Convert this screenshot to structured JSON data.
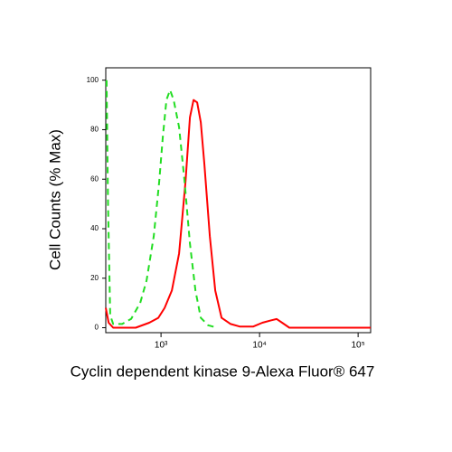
{
  "chart_data": {
    "type": "line",
    "ylabel": "Cell Counts (% Max)",
    "xlabel": "Cyclin dependent kinase 9-Alexa Fluor® 647",
    "xscale": "log",
    "xlim": [
      275,
      134000
    ],
    "ylim": [
      -2,
      105
    ],
    "xticks": [
      {
        "value": 1000,
        "label": "10³"
      },
      {
        "value": 10000,
        "label": "10⁴"
      },
      {
        "value": 100000,
        "label": "10⁵"
      }
    ],
    "yticks": [
      0,
      20,
      40,
      60,
      80,
      100
    ],
    "series": [
      {
        "color": "#ff0000",
        "dash": false,
        "x": [
          275,
          294,
          327,
          553,
          760,
          938,
          1088,
          1289,
          1525,
          1770,
          1967,
          2140,
          2327,
          2533,
          2757,
          3129,
          3550,
          4118,
          5085,
          6280,
          8630,
          10660,
          13160,
          14940,
          16960,
          20080,
          134000
        ],
        "values": [
          8,
          2,
          0,
          0,
          2,
          4,
          8,
          15,
          30,
          59,
          85,
          92,
          91,
          83,
          66,
          37,
          15,
          4,
          1.5,
          0.5,
          0.5,
          2,
          3,
          3.5,
          2,
          0,
          0
        ]
      },
      {
        "color": "#22dd22",
        "dash": true,
        "x": [
          280,
          290,
          305,
          327,
          404,
          498,
          615,
          713,
          845,
          959,
          1043,
          1135,
          1235,
          1344,
          1525,
          1734,
          1967,
          2234,
          2533,
          3002,
          3707
        ],
        "values": [
          100,
          50,
          5,
          1.5,
          1.5,
          3.6,
          10,
          19,
          37,
          59,
          77,
          92,
          96,
          92,
          81,
          59,
          34,
          15,
          4,
          1,
          0
        ]
      }
    ]
  }
}
